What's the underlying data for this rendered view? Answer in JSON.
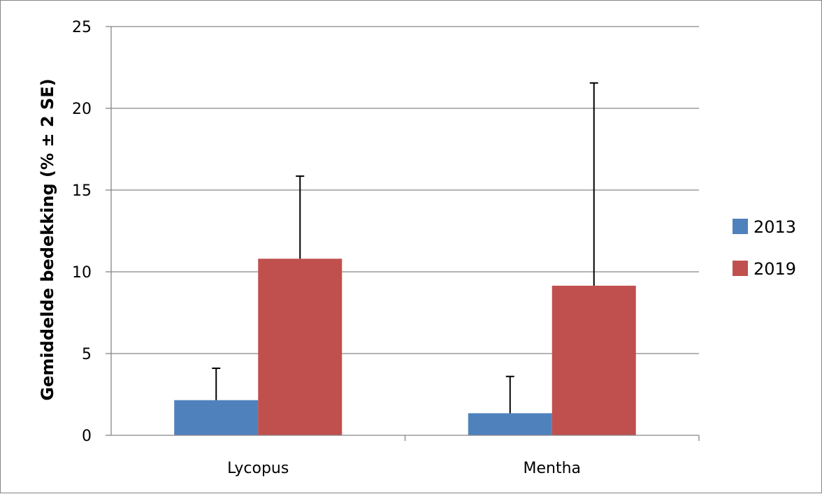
{
  "chart_data": {
    "type": "bar",
    "title": "",
    "xlabel": "",
    "ylabel": "Gemiddelde bedekking (% ± 2 SE)",
    "ylim": [
      0,
      25
    ],
    "yticks": [
      0,
      5,
      10,
      15,
      20,
      25
    ],
    "grid": true,
    "legend_position": "right",
    "categories": [
      "Lycopus",
      "Mentha"
    ],
    "series": [
      {
        "name": "2013",
        "color": "#4f81bd",
        "values": [
          2.15,
          1.35
        ],
        "error_upper": [
          4.1,
          3.6
        ]
      },
      {
        "name": "2019",
        "color": "#c0504d",
        "values": [
          10.8,
          9.15
        ],
        "error_upper": [
          15.85,
          21.55
        ]
      }
    ]
  }
}
